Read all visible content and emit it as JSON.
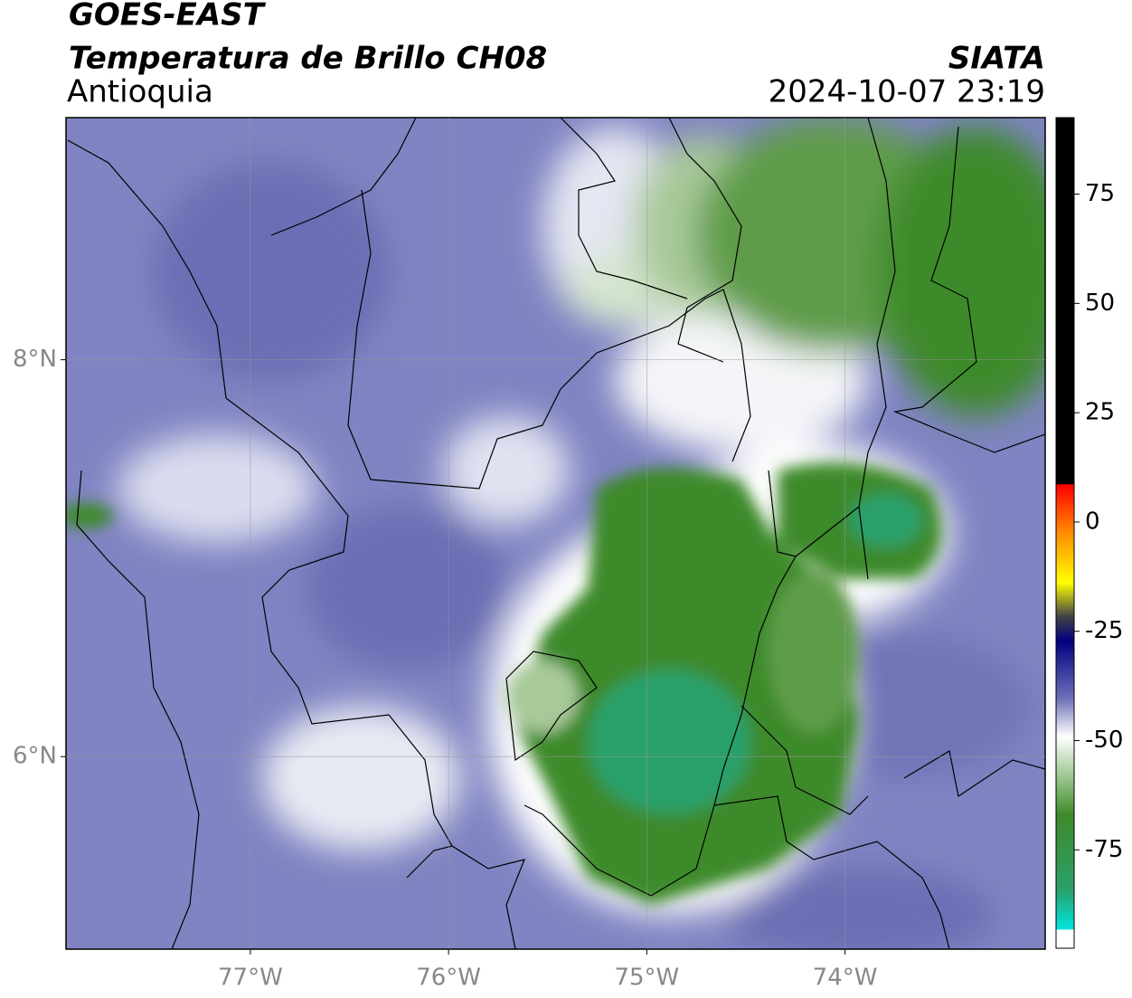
{
  "map": {
    "title": "GOES-EAST",
    "subtitle": "Temperatura de Brillo CH08",
    "region": "Antioquia",
    "source": "SIATA",
    "timestamp": "2024-10-07 23:19",
    "lon_lim": [
      -77.93,
      -72.99
    ],
    "lat_lim": [
      5.03,
      9.22
    ],
    "lon_ticks": [
      {
        "value": -77,
        "label": "77°W"
      },
      {
        "value": -76,
        "label": "76°W"
      },
      {
        "value": -75,
        "label": "75°W"
      },
      {
        "value": -74,
        "label": "74°W"
      }
    ],
    "lat_ticks": [
      {
        "value": 6,
        "label": "6°N"
      },
      {
        "value": 8,
        "label": "8°N"
      }
    ],
    "grid": true
  },
  "colorbar": {
    "lim": [
      -97.5,
      92.5
    ],
    "ticks": [
      75,
      50,
      25,
      0,
      -25,
      -50,
      -75
    ]
  }
}
